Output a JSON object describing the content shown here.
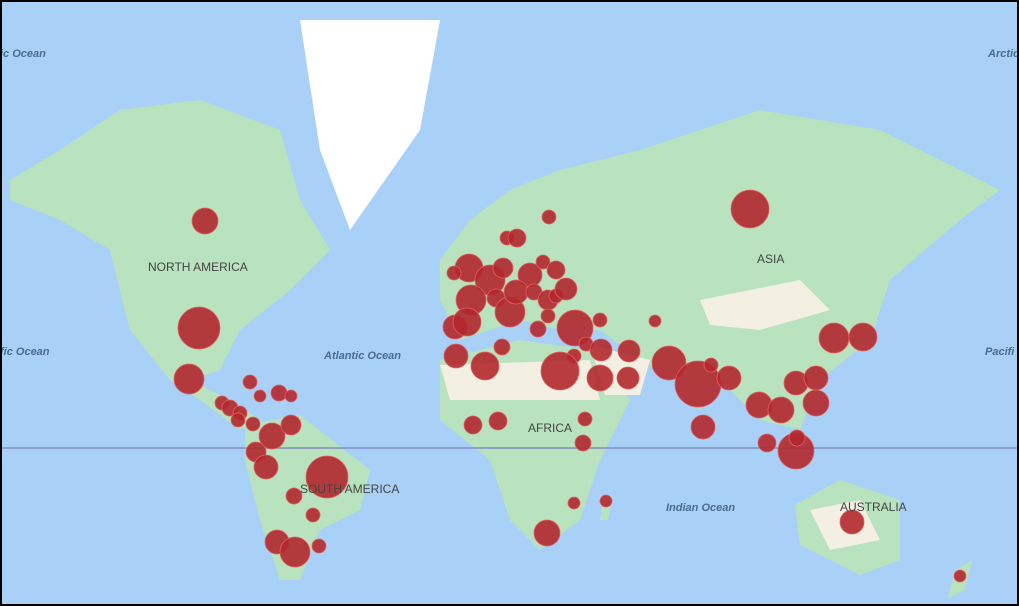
{
  "map": {
    "labels": [
      "ic Ocean",
      "Arctic",
      "NORTH AMERICA",
      "ASIA",
      "fic Ocean",
      "Atlantic Ocean",
      "Pacifi",
      "AFRICA",
      "SOUTH AMERICA",
      "Indian Ocean",
      "AUSTRALIA"
    ]
  }
}
